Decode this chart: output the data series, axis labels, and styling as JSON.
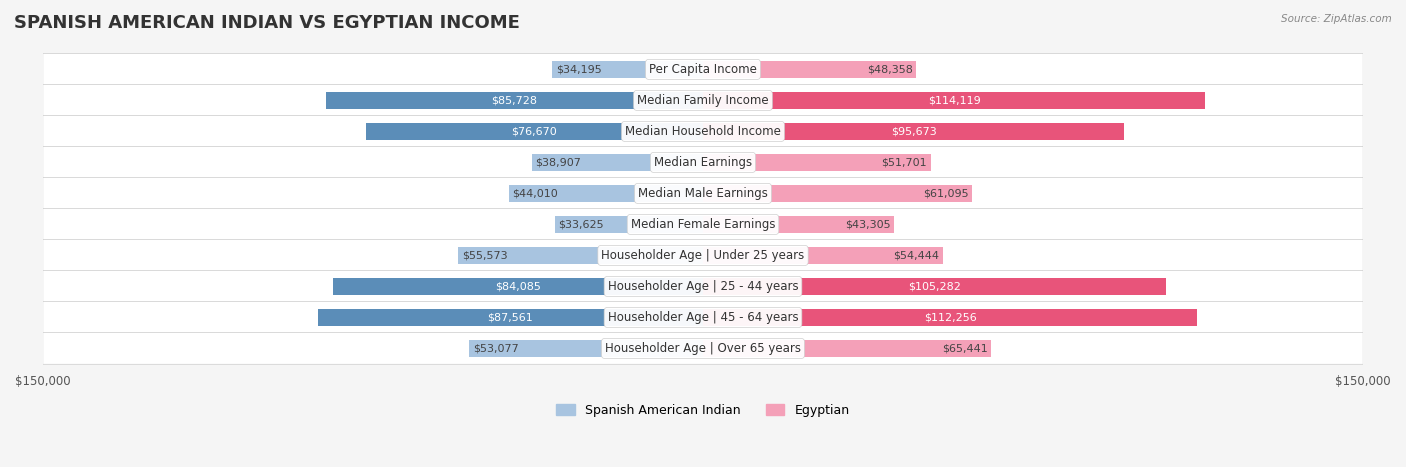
{
  "title": "SPANISH AMERICAN INDIAN VS EGYPTIAN INCOME",
  "source": "Source: ZipAtlas.com",
  "categories": [
    "Per Capita Income",
    "Median Family Income",
    "Median Household Income",
    "Median Earnings",
    "Median Male Earnings",
    "Median Female Earnings",
    "Householder Age | Under 25 years",
    "Householder Age | 25 - 44 years",
    "Householder Age | 45 - 64 years",
    "Householder Age | Over 65 years"
  ],
  "spanish_values": [
    34195,
    85728,
    76670,
    38907,
    44010,
    33625,
    55573,
    84085,
    87561,
    53077
  ],
  "egyptian_values": [
    48358,
    114119,
    95673,
    51701,
    61095,
    43305,
    54444,
    105282,
    112256,
    65441
  ],
  "spanish_labels": [
    "$34,195",
    "$85,728",
    "$76,670",
    "$38,907",
    "$44,010",
    "$33,625",
    "$55,573",
    "$84,085",
    "$87,561",
    "$53,077"
  ],
  "egyptian_labels": [
    "$48,358",
    "$114,119",
    "$95,673",
    "$51,701",
    "$61,095",
    "$43,305",
    "$54,444",
    "$105,282",
    "$112,256",
    "$65,441"
  ],
  "spanish_color_light": "#a8c4e0",
  "spanish_color_dark": "#5b8db8",
  "egyptian_color_light": "#f4a0b8",
  "egyptian_color_dark": "#e8547a",
  "max_value": 150000,
  "bg_color": "#f5f5f5",
  "bar_bg_color": "#ffffff",
  "title_fontsize": 13,
  "label_fontsize": 8.5,
  "legend_fontsize": 9,
  "axis_label_fontsize": 8.5,
  "spanish_value_label_color_high": "#ffffff",
  "spanish_value_label_color_low": "#555555",
  "egyptian_value_label_color_high": "#ffffff",
  "egyptian_value_label_color_low": "#555555",
  "high_threshold": 70000
}
